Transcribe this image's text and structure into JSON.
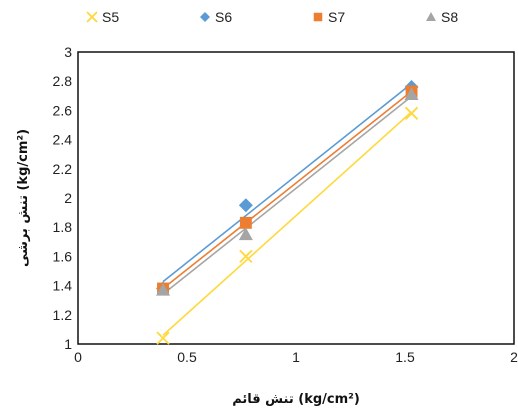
{
  "chart_data": {
    "type": "scatter",
    "xlabel": "تنش قائم (kg/cm²)",
    "ylabel": "تنش برشی (kg/cm²)",
    "xlim": [
      0,
      2
    ],
    "ylim": [
      1,
      3
    ],
    "x_ticks": [
      "0",
      "0.5",
      "1",
      "1.5",
      "2"
    ],
    "y_ticks": [
      "1",
      "1.2",
      "1.4",
      "1.6",
      "1.8",
      "2",
      "2.2",
      "2.4",
      "2.6",
      "2.8",
      "3"
    ],
    "legend_position": "top",
    "series": [
      {
        "name": "S5",
        "marker": "x",
        "color": "#FFD83A",
        "x": [
          0.39,
          0.77,
          1.53
        ],
        "y": [
          1.04,
          1.6,
          2.58
        ]
      },
      {
        "name": "S6",
        "marker": "diamond",
        "color": "#5B9BD5",
        "x": [
          0.39,
          0.77,
          1.53
        ],
        "y": [
          1.38,
          1.95,
          2.76
        ]
      },
      {
        "name": "S7",
        "marker": "square",
        "color": "#ED7D31",
        "x": [
          0.39,
          0.77,
          1.53
        ],
        "y": [
          1.38,
          1.83,
          2.73
        ]
      },
      {
        "name": "S8",
        "marker": "triangle",
        "color": "#A5A5A5",
        "x": [
          0.39,
          0.77,
          1.53
        ],
        "y": [
          1.37,
          1.75,
          2.71
        ]
      }
    ]
  }
}
